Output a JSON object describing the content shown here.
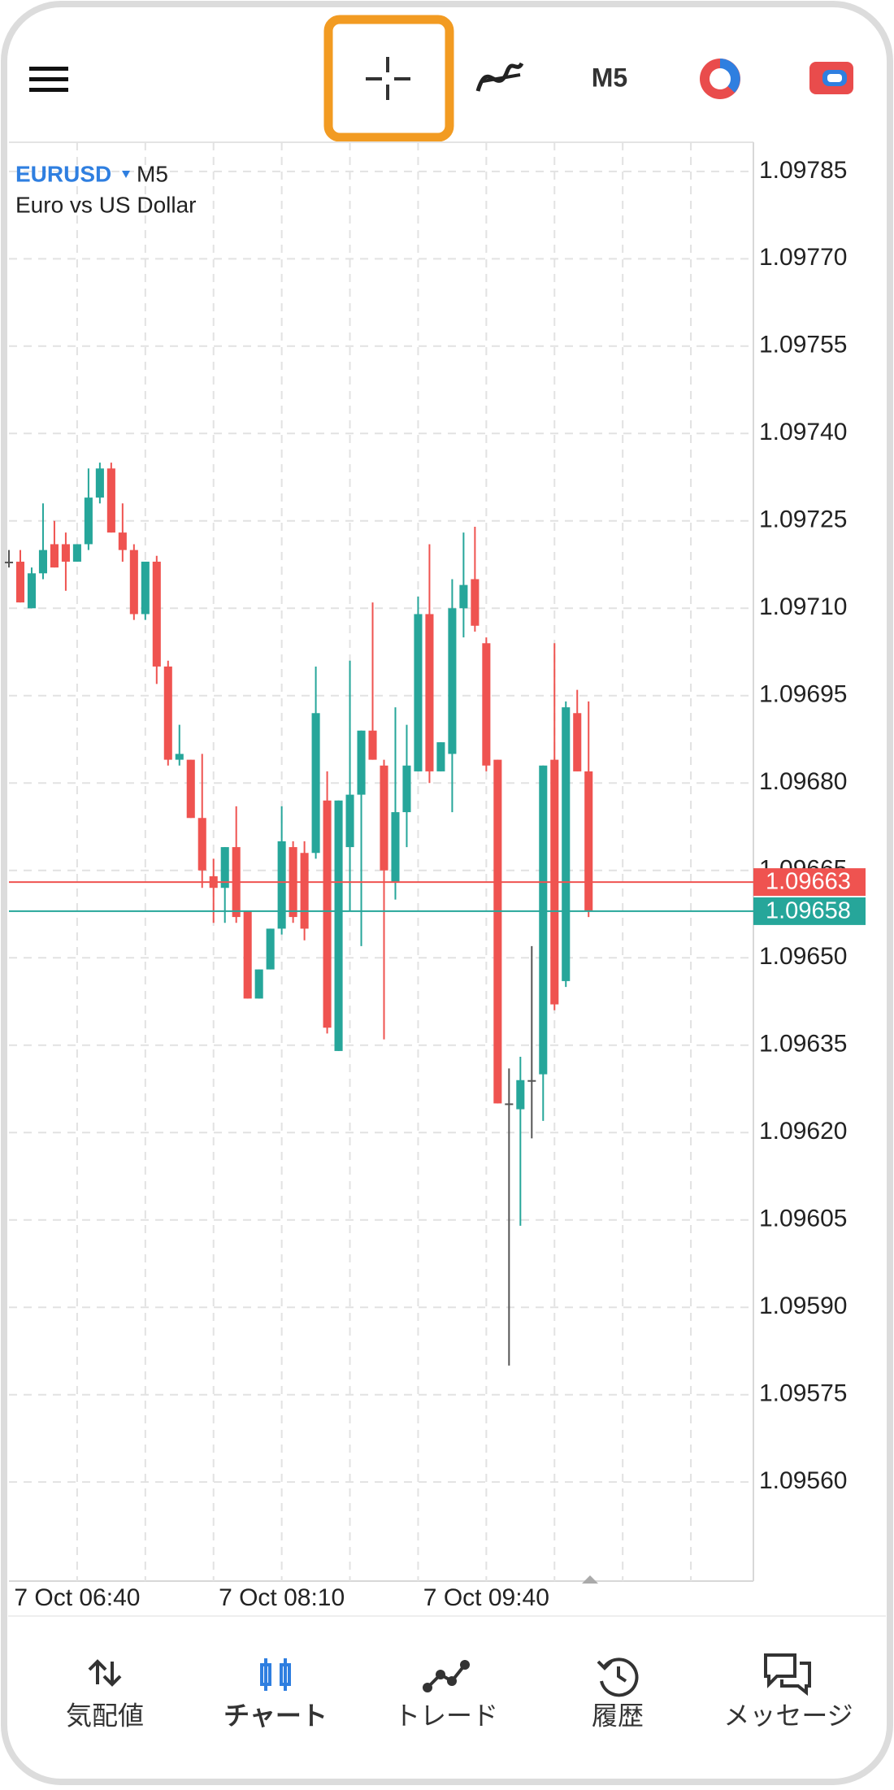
{
  "toolbar": {
    "timeframe": "M5"
  },
  "chart_data": {
    "type": "candlestick",
    "symbol": "EURUSD",
    "timeframe": "M5",
    "description": "Euro vs US Dollar",
    "open": [
      1.09718,
      1.09718,
      1.0971,
      1.09716,
      1.09721,
      1.09721,
      1.09718,
      1.09721,
      1.09729,
      1.09734,
      1.09723,
      1.0972,
      1.09709,
      1.09718,
      1.097,
      1.09684,
      1.09684,
      1.09674,
      1.09664,
      1.09662,
      1.09669,
      1.09658,
      1.09643,
      1.09648,
      1.09655,
      1.09669,
      1.09668,
      1.09668,
      1.09677,
      1.09634,
      1.09669,
      1.09678,
      1.09689,
      1.09683,
      1.09663,
      1.09675,
      1.09682,
      1.09709,
      1.09682,
      1.09685,
      1.0971,
      1.09715,
      1.09704,
      1.09684,
      1.09625,
      1.09624,
      1.09629,
      1.0963,
      1.09684,
      1.09646,
      1.09692,
      1.09682
    ],
    "high": [
      1.0972,
      1.0972,
      1.09717,
      1.09728,
      1.09725,
      1.09723,
      1.09721,
      1.09734,
      1.09735,
      1.09735,
      1.09728,
      1.09721,
      1.09718,
      1.09719,
      1.09701,
      1.0969,
      1.09684,
      1.09685,
      1.09667,
      1.09669,
      1.09676,
      1.09658,
      1.09648,
      1.09655,
      1.09676,
      1.0967,
      1.0967,
      1.097,
      1.09682,
      1.09677,
      1.09701,
      1.09689,
      1.09711,
      1.09684,
      1.09693,
      1.0969,
      1.09712,
      1.09721,
      1.09687,
      1.09715,
      1.09723,
      1.09724,
      1.09705,
      1.09684,
      1.09631,
      1.09633,
      1.09652,
      1.09683,
      1.09704,
      1.09694,
      1.09696,
      1.09694
    ],
    "low": [
      1.09717,
      1.09711,
      1.0971,
      1.09715,
      1.09717,
      1.09713,
      1.09718,
      1.0972,
      1.09728,
      1.09723,
      1.09718,
      1.09708,
      1.09708,
      1.09697,
      1.09683,
      1.09683,
      1.09674,
      1.09662,
      1.09656,
      1.09656,
      1.09656,
      1.09643,
      1.09643,
      1.09648,
      1.09654,
      1.09656,
      1.09653,
      1.09667,
      1.09637,
      1.09634,
      1.09658,
      1.09652,
      1.09684,
      1.09636,
      1.0966,
      1.09669,
      1.09682,
      1.0968,
      1.09682,
      1.09675,
      1.09705,
      1.09706,
      1.09682,
      1.09625,
      1.0958,
      1.09604,
      1.09619,
      1.09622,
      1.09641,
      1.09645,
      1.09682,
      1.09657
    ],
    "close": [
      1.09718,
      1.09711,
      1.09716,
      1.0972,
      1.09717,
      1.09718,
      1.09721,
      1.09729,
      1.09734,
      1.09723,
      1.0972,
      1.09709,
      1.09718,
      1.097,
      1.09684,
      1.09685,
      1.09674,
      1.09665,
      1.09662,
      1.09669,
      1.09657,
      1.09643,
      1.09648,
      1.09655,
      1.0967,
      1.09657,
      1.09655,
      1.09692,
      1.09638,
      1.09677,
      1.09678,
      1.09689,
      1.09684,
      1.09665,
      1.09675,
      1.09683,
      1.09709,
      1.09682,
      1.09687,
      1.0971,
      1.09714,
      1.09707,
      1.09683,
      1.09625,
      1.09625,
      1.09629,
      1.09629,
      1.09683,
      1.09642,
      1.09693,
      1.09682,
      1.09658
    ],
    "up_color": "#26a69a",
    "down_color": "#ef5350",
    "flat_color": "#555555",
    "xlim": [
      0,
      65.5
    ],
    "xticks": [
      {
        "value": 6,
        "label": "7 Oct 06:40"
      },
      {
        "value": 12,
        "label": null
      },
      {
        "value": 18,
        "label": null
      },
      {
        "value": 24,
        "label": "7 Oct 08:10"
      },
      {
        "value": 30,
        "label": null
      },
      {
        "value": 36,
        "label": null
      },
      {
        "value": 42,
        "label": "7 Oct 09:40"
      },
      {
        "value": 48,
        "label": null
      },
      {
        "value": 54,
        "label": null
      },
      {
        "value": 60,
        "label": null
      }
    ],
    "ylim": [
      1.09543,
      1.0979
    ],
    "yticks": [
      1.09785,
      {
        "value": 1.0977,
        "label": "1.09770"
      },
      1.09755,
      {
        "value": 1.0974,
        "label": "1.09740"
      },
      1.09725,
      {
        "value": 1.0971,
        "label": "1.09710"
      },
      1.09695,
      {
        "value": 1.0968,
        "label": "1.09680"
      },
      1.09665,
      {
        "value": 1.0965,
        "label": "1.09650"
      },
      1.09635,
      {
        "value": 1.0962,
        "label": "1.09620"
      },
      1.09605,
      {
        "value": 1.0959,
        "label": "1.09590"
      },
      1.09575,
      {
        "value": 1.0956,
        "label": "1.09560"
      }
    ],
    "grid": true,
    "price_lines": [
      {
        "value": 1.09663,
        "color": "#ef5350"
      },
      {
        "value": 1.09658,
        "color": "#26a69a"
      }
    ]
  },
  "nav": {
    "items": [
      "気配値",
      "チャート",
      "トレード",
      "履歴",
      "メッセージ"
    ],
    "active": 1
  }
}
